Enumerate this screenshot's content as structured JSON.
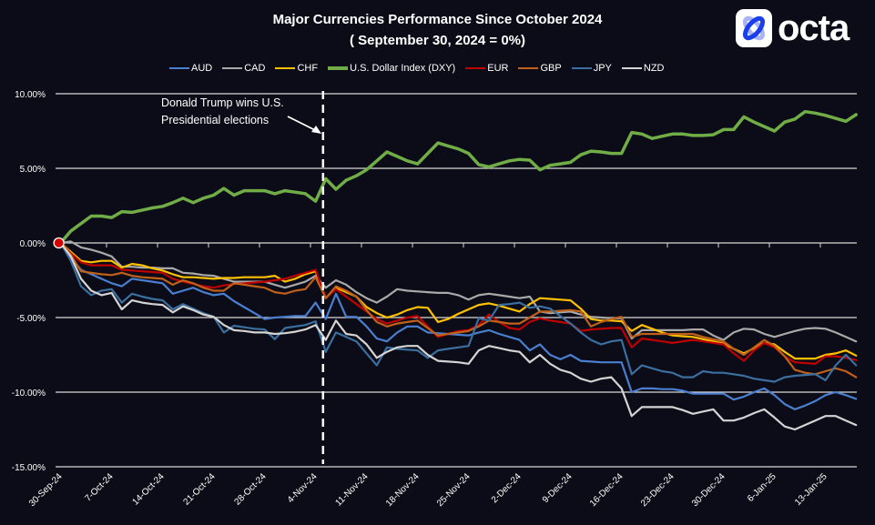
{
  "logo": {
    "text": "octa",
    "brand_color": "#1a3ee8"
  },
  "chart_data": {
    "type": "line",
    "title": "Major Currencies Performance Since October 2024",
    "subtitle": "( September 30, 2024 = 0%)",
    "xlabel": "",
    "ylabel": "",
    "ylim": [
      -15,
      10
    ],
    "y_ticks": [
      "10.00%",
      "5.00%",
      "0.00%",
      "-5.00%",
      "-10.00%",
      "-15.00%"
    ],
    "y_tick_values": [
      10,
      5,
      0,
      -5,
      -10,
      -15
    ],
    "x_tick_labels": [
      "30-Sep-24",
      "7-Oct-24",
      "14-Oct-24",
      "21-Oct-24",
      "28-Oct-24",
      "4-Nov-24",
      "11-Nov-24",
      "18-Nov-24",
      "25-Nov-24",
      "2-Dec-24",
      "9-Dec-24",
      "16-Dec-24",
      "23-Dec-24",
      "30-Dec-24",
      "6-Jan-25",
      "13-Jan-25"
    ],
    "grid": true,
    "legend_position": "top",
    "annotation": {
      "text_line1": "Donald Trump wins U.S.",
      "text_line2": "Presidential elections",
      "at": "4-Nov-24"
    },
    "series": [
      {
        "name": "AUD",
        "color": "#4a7fd0",
        "values": [
          0,
          -1.0,
          -1.8,
          -2.1,
          -2.4,
          -2.7,
          -2.9,
          -2.4,
          -2.5,
          -2.6,
          -2.7,
          -3.4,
          -3.2,
          -3.0,
          -3.3,
          -3.5,
          -3.4,
          -3.9,
          -4.3,
          -4.7,
          -5.1,
          -5.0,
          -4.95,
          -4.9,
          -4.9,
          -4.0,
          -5.1,
          -3.4,
          -4.95,
          -4.95,
          -5.6,
          -6.4,
          -6.6,
          -6.0,
          -5.6,
          -5.6,
          -6.0,
          -6.05,
          -6.1,
          -6.15,
          -6.2,
          -6.0,
          -5.85,
          -6.1,
          -6.3,
          -6.5,
          -7.2,
          -6.8,
          -7.5,
          -7.8,
          -7.5,
          -7.9,
          -7.95,
          -8.0,
          -8.0,
          -8.0,
          -10.0,
          -9.75,
          -9.75,
          -9.8,
          -9.8,
          -9.9,
          -10.1,
          -10.1,
          -10.1,
          -10.1,
          -10.5,
          -10.3,
          -10.0,
          -9.75,
          -10.2,
          -10.8,
          -11.15,
          -10.9,
          -10.6,
          -10.2,
          -10.0,
          -10.2,
          -10.45
        ]
      },
      {
        "name": "CAD",
        "color": "#a9a9a9",
        "values": [
          0,
          0.1,
          -0.3,
          -0.45,
          -0.65,
          -0.9,
          -1.6,
          -1.6,
          -1.65,
          -1.65,
          -1.7,
          -1.7,
          -2.0,
          -2.05,
          -2.15,
          -2.2,
          -2.4,
          -2.6,
          -2.6,
          -2.6,
          -2.6,
          -2.8,
          -3.0,
          -2.8,
          -2.6,
          -2.2,
          -3.0,
          -2.5,
          -2.8,
          -3.3,
          -3.7,
          -4.0,
          -3.6,
          -3.1,
          -3.2,
          -3.25,
          -3.3,
          -3.35,
          -3.35,
          -3.5,
          -3.8,
          -3.5,
          -3.4,
          -3.5,
          -3.6,
          -3.7,
          -3.6,
          -4.6,
          -4.7,
          -4.65,
          -4.6,
          -4.8,
          -4.95,
          -5.0,
          -5.05,
          -5.05,
          -6.4,
          -5.85,
          -5.85,
          -5.85,
          -5.85,
          -5.85,
          -5.8,
          -5.8,
          -6.2,
          -6.5,
          -6.0,
          -5.75,
          -5.8,
          -6.1,
          -6.3,
          -6.1,
          -5.9,
          -5.75,
          -5.7,
          -5.75,
          -6.0,
          -6.3,
          -6.6
        ]
      },
      {
        "name": "CHF",
        "color": "#ffc000",
        "values": [
          0,
          -0.6,
          -1.2,
          -1.3,
          -1.2,
          -1.2,
          -1.65,
          -1.4,
          -1.5,
          -1.7,
          -1.85,
          -2.1,
          -2.3,
          -2.3,
          -2.35,
          -2.4,
          -2.35,
          -2.35,
          -2.3,
          -2.3,
          -2.3,
          -2.2,
          -2.6,
          -2.4,
          -2.1,
          -1.9,
          -3.7,
          -3.0,
          -3.3,
          -3.6,
          -4.3,
          -4.7,
          -5.0,
          -4.8,
          -4.5,
          -4.3,
          -4.35,
          -5.3,
          -5.1,
          -4.75,
          -4.45,
          -4.15,
          -4.05,
          -4.2,
          -4.4,
          -4.6,
          -4.1,
          -3.7,
          -3.75,
          -3.8,
          -3.85,
          -4.4,
          -5.1,
          -5.2,
          -5.2,
          -5.25,
          -5.9,
          -5.5,
          -5.75,
          -6.0,
          -6.2,
          -6.25,
          -6.3,
          -6.45,
          -6.6,
          -6.75,
          -7.1,
          -7.4,
          -7.05,
          -6.7,
          -6.8,
          -7.3,
          -7.75,
          -7.75,
          -7.75,
          -7.5,
          -7.4,
          -7.2,
          -7.55
        ]
      },
      {
        "name": "U.S. Dollar Index (DXY)",
        "color": "#70ad47",
        "values": [
          0,
          0.8,
          1.3,
          1.8,
          1.8,
          1.7,
          2.1,
          2.05,
          2.2,
          2.35,
          2.45,
          2.7,
          3.0,
          2.7,
          3.0,
          3.2,
          3.65,
          3.2,
          3.5,
          3.5,
          3.5,
          3.3,
          3.5,
          3.4,
          3.3,
          2.8,
          4.3,
          3.6,
          4.2,
          4.5,
          4.9,
          5.5,
          6.1,
          5.8,
          5.5,
          5.3,
          6.0,
          6.7,
          6.5,
          6.3,
          6.0,
          5.25,
          5.1,
          5.3,
          5.5,
          5.6,
          5.55,
          4.9,
          5.2,
          5.3,
          5.4,
          5.9,
          6.15,
          6.1,
          6.0,
          6.0,
          7.4,
          7.3,
          7.0,
          7.15,
          7.3,
          7.3,
          7.2,
          7.2,
          7.25,
          7.6,
          7.6,
          8.45,
          8.1,
          7.8,
          7.5,
          8.1,
          8.3,
          8.8,
          8.7,
          8.55,
          8.35,
          8.15,
          8.6
        ]
      },
      {
        "name": "EUR",
        "color": "#c00000",
        "values": [
          0,
          -0.7,
          -1.3,
          -1.5,
          -1.5,
          -1.5,
          -1.8,
          -1.85,
          -1.9,
          -1.95,
          -2.0,
          -2.4,
          -2.6,
          -2.75,
          -2.9,
          -3.0,
          -2.85,
          -2.75,
          -2.7,
          -2.65,
          -2.6,
          -2.5,
          -2.4,
          -2.2,
          -2.0,
          -1.8,
          -3.7,
          -3.1,
          -3.6,
          -4.1,
          -4.6,
          -5.1,
          -5.4,
          -5.2,
          -5.0,
          -4.9,
          -5.6,
          -6.3,
          -6.1,
          -5.9,
          -5.85,
          -5.5,
          -4.8,
          -5.3,
          -5.7,
          -5.8,
          -5.3,
          -5.05,
          -5.2,
          -5.3,
          -5.4,
          -5.9,
          -5.8,
          -5.75,
          -5.7,
          -5.7,
          -7.0,
          -6.4,
          -6.5,
          -6.6,
          -6.7,
          -6.6,
          -6.5,
          -6.6,
          -6.7,
          -6.8,
          -7.4,
          -7.9,
          -7.2,
          -6.7,
          -7.0,
          -7.6,
          -8.0,
          -8.05,
          -8.1,
          -7.6,
          -7.6,
          -7.7,
          -7.85
        ]
      },
      {
        "name": "GBP",
        "color": "#c0601a",
        "values": [
          0,
          -0.8,
          -1.9,
          -2.0,
          -2.1,
          -2.15,
          -2.0,
          -2.2,
          -2.3,
          -2.35,
          -2.4,
          -2.8,
          -2.5,
          -2.7,
          -3.0,
          -3.2,
          -3.2,
          -2.7,
          -2.8,
          -2.9,
          -3.0,
          -3.3,
          -3.4,
          -3.2,
          -3.1,
          -2.3,
          -3.7,
          -2.9,
          -3.2,
          -3.6,
          -4.5,
          -5.3,
          -5.6,
          -5.4,
          -5.3,
          -5.2,
          -5.7,
          -6.2,
          -6.1,
          -6.0,
          -5.9,
          -5.6,
          -5.2,
          -5.3,
          -5.4,
          -5.4,
          -5.0,
          -4.6,
          -4.6,
          -4.55,
          -4.5,
          -4.6,
          -5.6,
          -5.3,
          -5.1,
          -4.95,
          -6.3,
          -6.1,
          -6.1,
          -6.1,
          -6.1,
          -6.1,
          -6.1,
          -6.3,
          -6.45,
          -6.6,
          -7.1,
          -7.5,
          -7.0,
          -6.5,
          -6.9,
          -7.6,
          -8.5,
          -8.7,
          -8.8,
          -8.6,
          -8.4,
          -8.6,
          -9.0
        ]
      },
      {
        "name": "JPY",
        "color": "#3a6f9f",
        "values": [
          0,
          -1.2,
          -2.9,
          -3.5,
          -3.2,
          -3.1,
          -4.0,
          -3.4,
          -3.6,
          -3.75,
          -3.85,
          -4.45,
          -4.1,
          -4.4,
          -4.7,
          -4.95,
          -6.0,
          -5.55,
          -5.65,
          -5.75,
          -5.8,
          -6.45,
          -5.7,
          -5.6,
          -5.5,
          -5.25,
          -7.3,
          -6.0,
          -6.3,
          -6.6,
          -7.4,
          -8.2,
          -7.0,
          -7.1,
          -7.15,
          -7.2,
          -7.7,
          -7.2,
          -7.1,
          -7.0,
          -6.9,
          -5.05,
          -5.2,
          -4.15,
          -4.1,
          -4.0,
          -4.35,
          -4.25,
          -4.4,
          -4.9,
          -5.4,
          -6.0,
          -6.5,
          -6.8,
          -6.6,
          -6.5,
          -8.8,
          -8.2,
          -8.4,
          -8.6,
          -8.7,
          -9.0,
          -9.0,
          -8.6,
          -8.7,
          -8.7,
          -8.8,
          -8.9,
          -9.1,
          -9.2,
          -9.3,
          -9.0,
          -8.9,
          -8.85,
          -8.8,
          -9.2,
          -8.2,
          -7.5,
          -8.2
        ]
      },
      {
        "name": "NZD",
        "color": "#d4d4d4",
        "values": [
          0,
          -0.9,
          -2.4,
          -3.2,
          -3.5,
          -3.35,
          -4.45,
          -3.85,
          -4.0,
          -4.1,
          -4.15,
          -4.65,
          -4.25,
          -4.5,
          -4.8,
          -4.95,
          -5.5,
          -5.85,
          -5.9,
          -6.0,
          -6.0,
          -6.1,
          -6.05,
          -5.95,
          -5.8,
          -5.5,
          -6.5,
          -5.2,
          -6.1,
          -6.2,
          -6.8,
          -7.7,
          -7.3,
          -7.0,
          -6.9,
          -6.9,
          -7.5,
          -7.9,
          -7.95,
          -8.0,
          -8.1,
          -7.2,
          -6.9,
          -7.05,
          -7.2,
          -7.3,
          -8.0,
          -7.5,
          -8.1,
          -8.5,
          -8.7,
          -9.1,
          -9.3,
          -9.1,
          -9.0,
          -9.75,
          -11.6,
          -11.0,
          -11.0,
          -11.0,
          -11.0,
          -11.2,
          -11.45,
          -11.3,
          -11.15,
          -11.9,
          -11.9,
          -11.7,
          -11.4,
          -11.15,
          -11.7,
          -12.3,
          -12.5,
          -12.2,
          -11.9,
          -11.6,
          -11.6,
          -11.9,
          -12.2
        ]
      }
    ],
    "base_marker_color": "#d00000"
  }
}
